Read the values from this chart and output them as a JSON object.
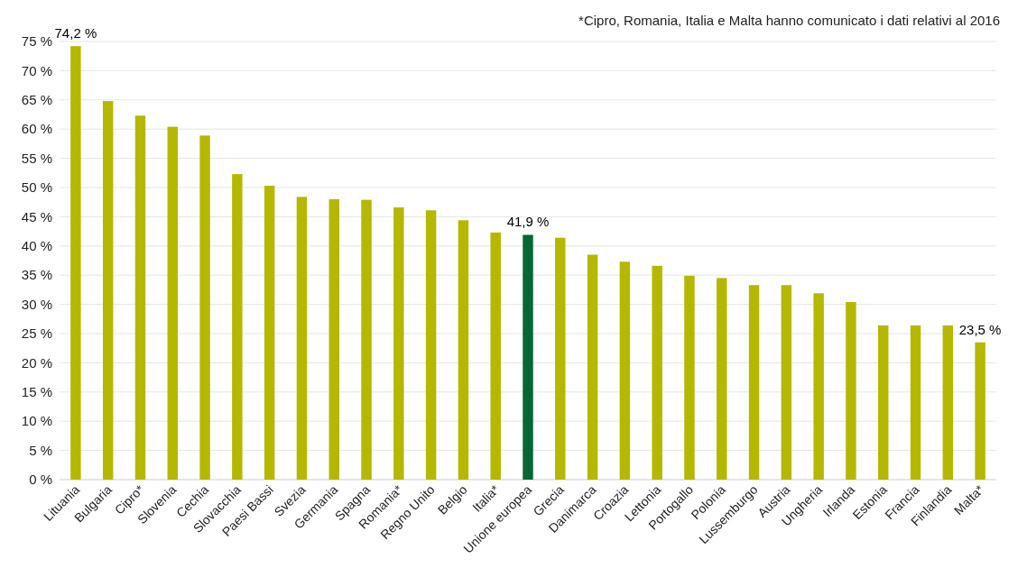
{
  "chart_data": {
    "type": "bar",
    "categories": [
      "Lituania",
      "Bulgaria",
      "Cipro*",
      "Slovenia",
      "Cechia",
      "Slovacchia",
      "Paesi Bassi",
      "Svezia",
      "Germania",
      "Spagna",
      "Romania*",
      "Regno Unito",
      "Belgio",
      "Italia*",
      "Unione europea",
      "Grecia",
      "Danimarca",
      "Croazia",
      "Lettonia",
      "Portogallo",
      "Polonia",
      "Lussemburgo",
      "Austria",
      "Ungheria",
      "Irlanda",
      "Estonia",
      "Francia",
      "Finlandia",
      "Malta*"
    ],
    "values": [
      74.2,
      64.8,
      62.3,
      60.4,
      58.9,
      52.3,
      50.3,
      48.4,
      48.0,
      47.9,
      46.6,
      46.1,
      44.4,
      42.3,
      41.9,
      41.4,
      38.5,
      37.3,
      36.6,
      34.9,
      34.5,
      33.3,
      33.3,
      31.9,
      30.4,
      26.4,
      26.4,
      26.4,
      23.5
    ],
    "colors": [
      "#b5b800",
      "#b5b800",
      "#b5b800",
      "#b5b800",
      "#b5b800",
      "#b5b800",
      "#b5b800",
      "#b5b800",
      "#b5b800",
      "#b5b800",
      "#b5b800",
      "#b5b800",
      "#b5b800",
      "#b5b800",
      "#076633",
      "#b5b800",
      "#b5b800",
      "#b5b800",
      "#b5b800",
      "#b5b800",
      "#b5b800",
      "#b5b800",
      "#b5b800",
      "#b5b800",
      "#b5b800",
      "#b5b800",
      "#b5b800",
      "#b5b800",
      "#b5b800"
    ],
    "value_labels": [
      "74,2 %",
      null,
      null,
      null,
      null,
      null,
      null,
      null,
      null,
      null,
      null,
      null,
      null,
      null,
      "41,9 %",
      null,
      null,
      null,
      null,
      null,
      null,
      null,
      null,
      null,
      null,
      null,
      null,
      null,
      "23,5 %"
    ],
    "ylim": [
      0,
      75
    ],
    "yticks": [
      {
        "value": 0,
        "label": "0 %"
      },
      {
        "value": 5,
        "label": "5 %"
      },
      {
        "value": 10,
        "label": "10 %"
      },
      {
        "value": 15,
        "label": "15 %"
      },
      {
        "value": 20,
        "label": "20 %"
      },
      {
        "value": 25,
        "label": "25 %"
      },
      {
        "value": 30,
        "label": "30 %"
      },
      {
        "value": 35,
        "label": "35 %"
      },
      {
        "value": 40,
        "label": "40 %"
      },
      {
        "value": 45,
        "label": "45 %"
      },
      {
        "value": 50,
        "label": "50 %"
      },
      {
        "value": 55,
        "label": "55 %"
      },
      {
        "value": 60,
        "label": "60 %"
      },
      {
        "value": 65,
        "label": "65 %"
      },
      {
        "value": 70,
        "label": "70 %"
      },
      {
        "value": 75,
        "label": "75 %"
      }
    ],
    "grid": "y",
    "annotations": [
      "*Cipro, Romania, Italia e Malta hanno comunicato i dati relativi al 2016"
    ]
  }
}
